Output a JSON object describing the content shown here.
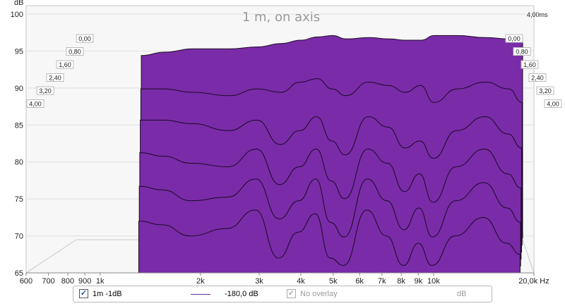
{
  "chart_data": {
    "type": "waterfall",
    "title": "1 m, on axis",
    "ylabel": "dB",
    "xlabel": "Hz",
    "yticks": [
      "100",
      "95",
      "90",
      "85",
      "80",
      "75",
      "70",
      "65"
    ],
    "ylim": [
      65,
      100
    ],
    "xlim": [
      600,
      20000
    ],
    "x_scale": "log",
    "xticks": [
      {
        "v": 600,
        "label": "600"
      },
      {
        "v": 700,
        "label": "700"
      },
      {
        "v": 800,
        "label": "800"
      },
      {
        "v": 900,
        "label": "900"
      },
      {
        "v": 1000,
        "label": "1k"
      },
      {
        "v": 2000,
        "label": "2k"
      },
      {
        "v": 3000,
        "label": "3k"
      },
      {
        "v": 4000,
        "label": "4k"
      },
      {
        "v": 5000,
        "label": "5k"
      },
      {
        "v": 6000,
        "label": "6k"
      },
      {
        "v": 7000,
        "label": "7k"
      },
      {
        "v": 8000,
        "label": "8k"
      },
      {
        "v": 9000,
        "label": "9k"
      },
      {
        "v": 10000,
        "label": "10k"
      },
      {
        "v": 20000,
        "label": "20,0k Hz"
      }
    ],
    "time_axis_label": "4,00ms",
    "time_slices_ms": [
      "0,00",
      "0,80",
      "1,60",
      "2,40",
      "3,20",
      "4,00"
    ],
    "fill_color": "#7a2ba8",
    "edge_color": "#1a0a24",
    "grid": true,
    "slices": [
      {
        "x": [
          1000,
          1200,
          1500,
          2000,
          2500,
          3000,
          3500,
          4000,
          4500,
          5000,
          6000,
          7000,
          8000,
          9000,
          10000,
          12000,
          15000,
          18000,
          20000
        ],
        "y": [
          92.5,
          93.0,
          93.5,
          93.5,
          93.8,
          94.3,
          94.8,
          95.3,
          95.5,
          95.0,
          95.2,
          95.0,
          94.8,
          94.8,
          95.5,
          95.5,
          95.2,
          95.0,
          95.0
        ]
      },
      {
        "x": [
          1000,
          1200,
          1500,
          2000,
          2500,
          3000,
          3500,
          4000,
          4500,
          5000,
          6000,
          7000,
          8000,
          9000,
          10000,
          12000,
          15000,
          18000,
          20000
        ],
        "y": [
          88.0,
          88.0,
          87.5,
          87.0,
          88.0,
          87.5,
          89.0,
          89.5,
          88.0,
          87.0,
          89.0,
          88.5,
          87.5,
          88.5,
          86.0,
          88.0,
          89.0,
          88.0,
          86.0
        ]
      },
      {
        "x": [
          1000,
          1200,
          1500,
          2000,
          2500,
          3000,
          3500,
          4000,
          4500,
          5000,
          6000,
          7000,
          8000,
          9000,
          10000,
          12000,
          15000,
          18000,
          20000
        ],
        "y": [
          84.0,
          84.0,
          83.5,
          82.5,
          84.0,
          80.5,
          82.5,
          84.5,
          81.0,
          79.0,
          84.5,
          83.0,
          80.0,
          81.0,
          78.5,
          82.5,
          84.5,
          82.0,
          80.0
        ]
      },
      {
        "x": [
          1000,
          1200,
          1500,
          2000,
          2500,
          3000,
          3500,
          4000,
          4500,
          5000,
          6000,
          7000,
          8000,
          9000,
          10000,
          12000,
          15000,
          18000,
          20000
        ],
        "y": [
          80.0,
          79.5,
          78.5,
          78.0,
          80.5,
          75.5,
          78.0,
          80.5,
          76.0,
          73.5,
          80.5,
          78.5,
          74.5,
          77.0,
          73.0,
          78.0,
          80.5,
          77.0,
          75.0
        ]
      },
      {
        "x": [
          1000,
          1200,
          1500,
          2000,
          2500,
          3000,
          3500,
          4000,
          4500,
          5000,
          6000,
          7000,
          8000,
          9000,
          10000,
          12000,
          15000,
          18000,
          20000
        ],
        "y": [
          76.0,
          75.5,
          74.0,
          74.5,
          77.0,
          71.5,
          74.0,
          77.0,
          71.0,
          69.0,
          77.0,
          74.0,
          70.0,
          73.0,
          69.0,
          74.0,
          76.5,
          73.0,
          71.0
        ]
      },
      {
        "x": [
          1000,
          1200,
          1500,
          2000,
          2500,
          3000,
          3500,
          4000,
          4500,
          5000,
          6000,
          7000,
          8000,
          9000,
          10000,
          12000,
          15000,
          18000,
          20000
        ],
        "y": [
          72.0,
          71.5,
          70.0,
          71.0,
          73.5,
          67.0,
          70.5,
          73.0,
          67.0,
          66.0,
          73.5,
          70.0,
          66.0,
          69.0,
          66.0,
          70.0,
          72.5,
          69.0,
          67.5
        ]
      }
    ]
  },
  "legend": {
    "series_label": "1m -1dB",
    "level": "-180,0 dB",
    "overlay_label": "No overlay",
    "unit": "dB",
    "series_color": "#6b2a8f",
    "dim_color": "#9a9a9a"
  }
}
